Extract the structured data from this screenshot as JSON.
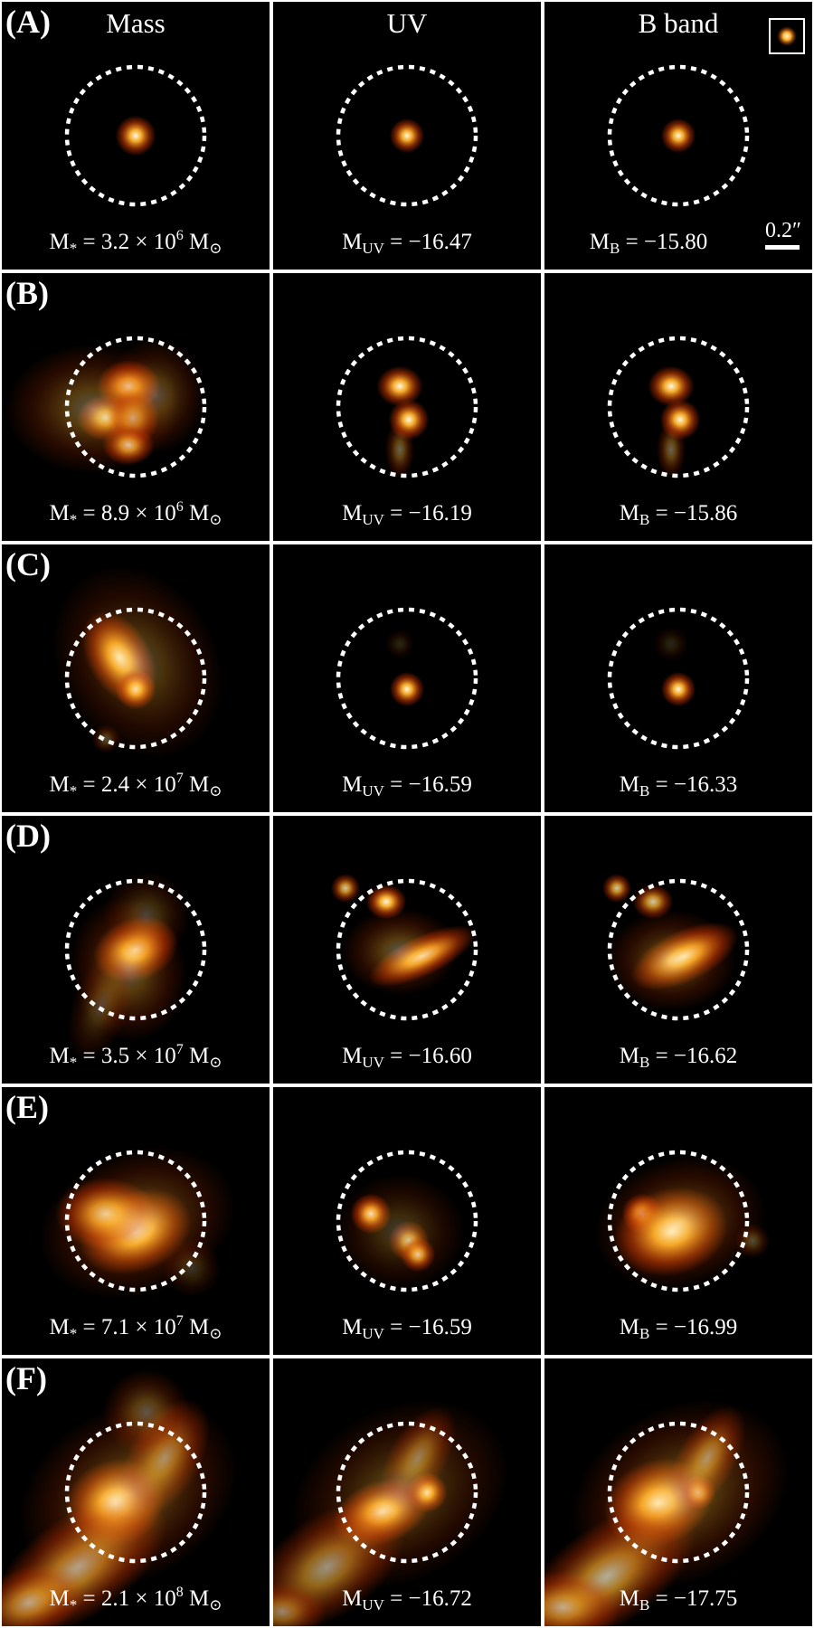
{
  "columns": [
    "Mass",
    "UV",
    "B band"
  ],
  "scale_bar_label": "0.2″",
  "rows": [
    {
      "label": "(A)",
      "captions": [
        {
          "sym": "M",
          "sub": "*",
          "mid": " = 3.2 × 10",
          "sup": "6",
          "end": " M",
          "endsub": "⊙"
        },
        {
          "sym": "M",
          "sub": "UV",
          "mid": " = −16.47",
          "sup": "",
          "end": "",
          "endsub": ""
        },
        {
          "sym": "M",
          "sub": "B",
          "mid": " = −15.80",
          "sup": "",
          "end": "",
          "endsub": ""
        }
      ]
    },
    {
      "label": "(B)",
      "captions": [
        {
          "sym": "M",
          "sub": "*",
          "mid": " = 8.9 × 10",
          "sup": "6",
          "end": " M",
          "endsub": "⊙"
        },
        {
          "sym": "M",
          "sub": "UV",
          "mid": " = −16.19",
          "sup": "",
          "end": "",
          "endsub": ""
        },
        {
          "sym": "M",
          "sub": "B",
          "mid": " = −15.86",
          "sup": "",
          "end": "",
          "endsub": ""
        }
      ]
    },
    {
      "label": "(C)",
      "captions": [
        {
          "sym": "M",
          "sub": "*",
          "mid": " = 2.4 × 10",
          "sup": "7",
          "end": " M",
          "endsub": "⊙"
        },
        {
          "sym": "M",
          "sub": "UV",
          "mid": " = −16.59",
          "sup": "",
          "end": "",
          "endsub": ""
        },
        {
          "sym": "M",
          "sub": "B",
          "mid": " = −16.33",
          "sup": "",
          "end": "",
          "endsub": ""
        }
      ]
    },
    {
      "label": "(D)",
      "captions": [
        {
          "sym": "M",
          "sub": "*",
          "mid": " = 3.5 × 10",
          "sup": "7",
          "end": " M",
          "endsub": "⊙"
        },
        {
          "sym": "M",
          "sub": "UV",
          "mid": " = −16.60",
          "sup": "",
          "end": "",
          "endsub": ""
        },
        {
          "sym": "M",
          "sub": "B",
          "mid": " = −16.62",
          "sup": "",
          "end": "",
          "endsub": ""
        }
      ]
    },
    {
      "label": "(E)",
      "captions": [
        {
          "sym": "M",
          "sub": "*",
          "mid": " = 7.1 × 10",
          "sup": "7",
          "end": " M",
          "endsub": "⊙"
        },
        {
          "sym": "M",
          "sub": "UV",
          "mid": " = −16.59",
          "sup": "",
          "end": "",
          "endsub": ""
        },
        {
          "sym": "M",
          "sub": "B",
          "mid": " = −16.99",
          "sup": "",
          "end": "",
          "endsub": ""
        }
      ]
    },
    {
      "label": "(F)",
      "captions": [
        {
          "sym": "M",
          "sub": "*",
          "mid": " = 2.1 × 10",
          "sup": "8",
          "end": " M",
          "endsub": "⊙"
        },
        {
          "sym": "M",
          "sub": "UV",
          "mid": " = −16.72",
          "sup": "",
          "end": "",
          "endsub": ""
        },
        {
          "sym": "M",
          "sub": "B",
          "mid": " = −17.75",
          "sup": "",
          "end": "",
          "endsub": ""
        }
      ]
    }
  ],
  "colors": {
    "background": "#000000",
    "circle": "#ffffff",
    "glow_core": "#fffbe0",
    "glow_mid": "#ffb02a",
    "glow_outer": "#c23300"
  }
}
